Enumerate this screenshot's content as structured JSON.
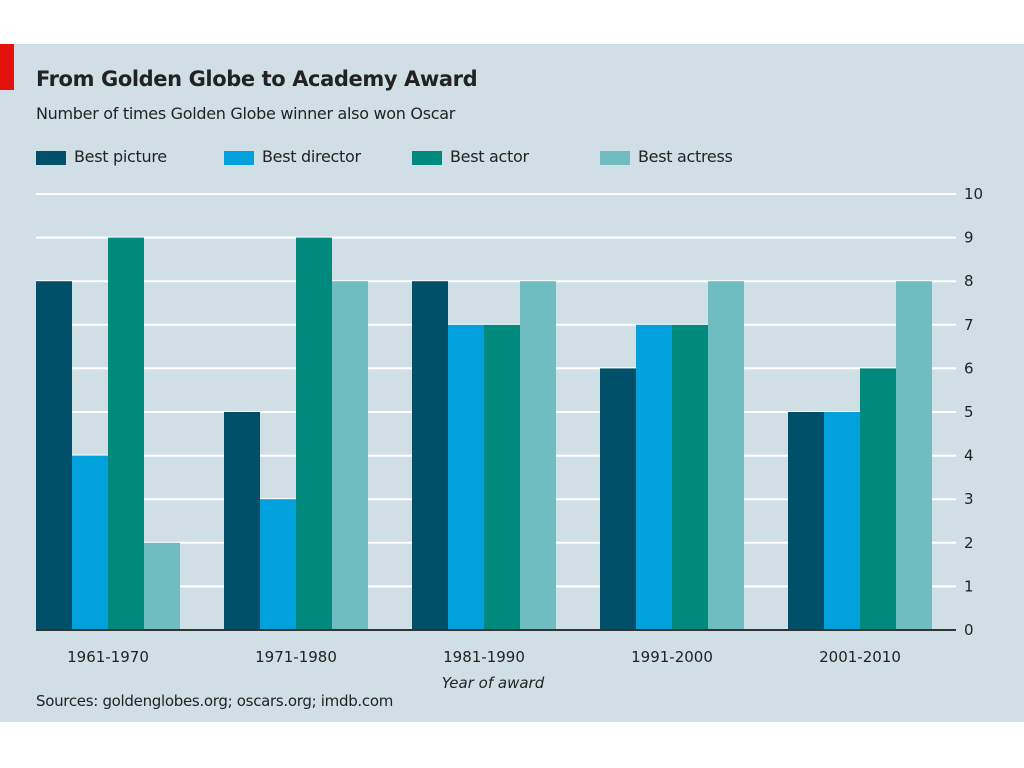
{
  "header": {
    "title": "From Golden Globe to Academy Award",
    "subtitle": "Number of times Golden Globe winner also won Oscar"
  },
  "footer": {
    "source": "Sources: goldenglobes.org; oscars.org; imdb.com"
  },
  "colors": {
    "background": "#d0dfe6",
    "accent_tab": "#e3120b",
    "gridline": "#ffffff",
    "axis": "#333333"
  },
  "chart_data": {
    "type": "bar",
    "title": "From Golden Globe to Academy Award",
    "subtitle": "Number of times Golden Globe winner also won Oscar",
    "xlabel": "Year of award",
    "ylabel": "",
    "categories": [
      "1961-1970",
      "1971-1980",
      "1981-1990",
      "1991-2000",
      "2001-2010"
    ],
    "series": [
      {
        "name": "Best picture",
        "color": "#00506a",
        "values": [
          8,
          5,
          8,
          6,
          5
        ]
      },
      {
        "name": "Best director",
        "color": "#00a1dc",
        "values": [
          4,
          3,
          7,
          7,
          5
        ]
      },
      {
        "name": "Best actor",
        "color": "#008a7d",
        "values": [
          9,
          9,
          7,
          7,
          6
        ]
      },
      {
        "name": "Best actress",
        "color": "#6fbdc0",
        "values": [
          2,
          8,
          8,
          8,
          8
        ]
      }
    ],
    "ylim": [
      0,
      10
    ],
    "yticks": [
      0,
      1,
      2,
      3,
      4,
      5,
      6,
      7,
      8,
      9,
      10
    ],
    "y_axis_side": "right",
    "grid": true,
    "legend_position": "top"
  }
}
